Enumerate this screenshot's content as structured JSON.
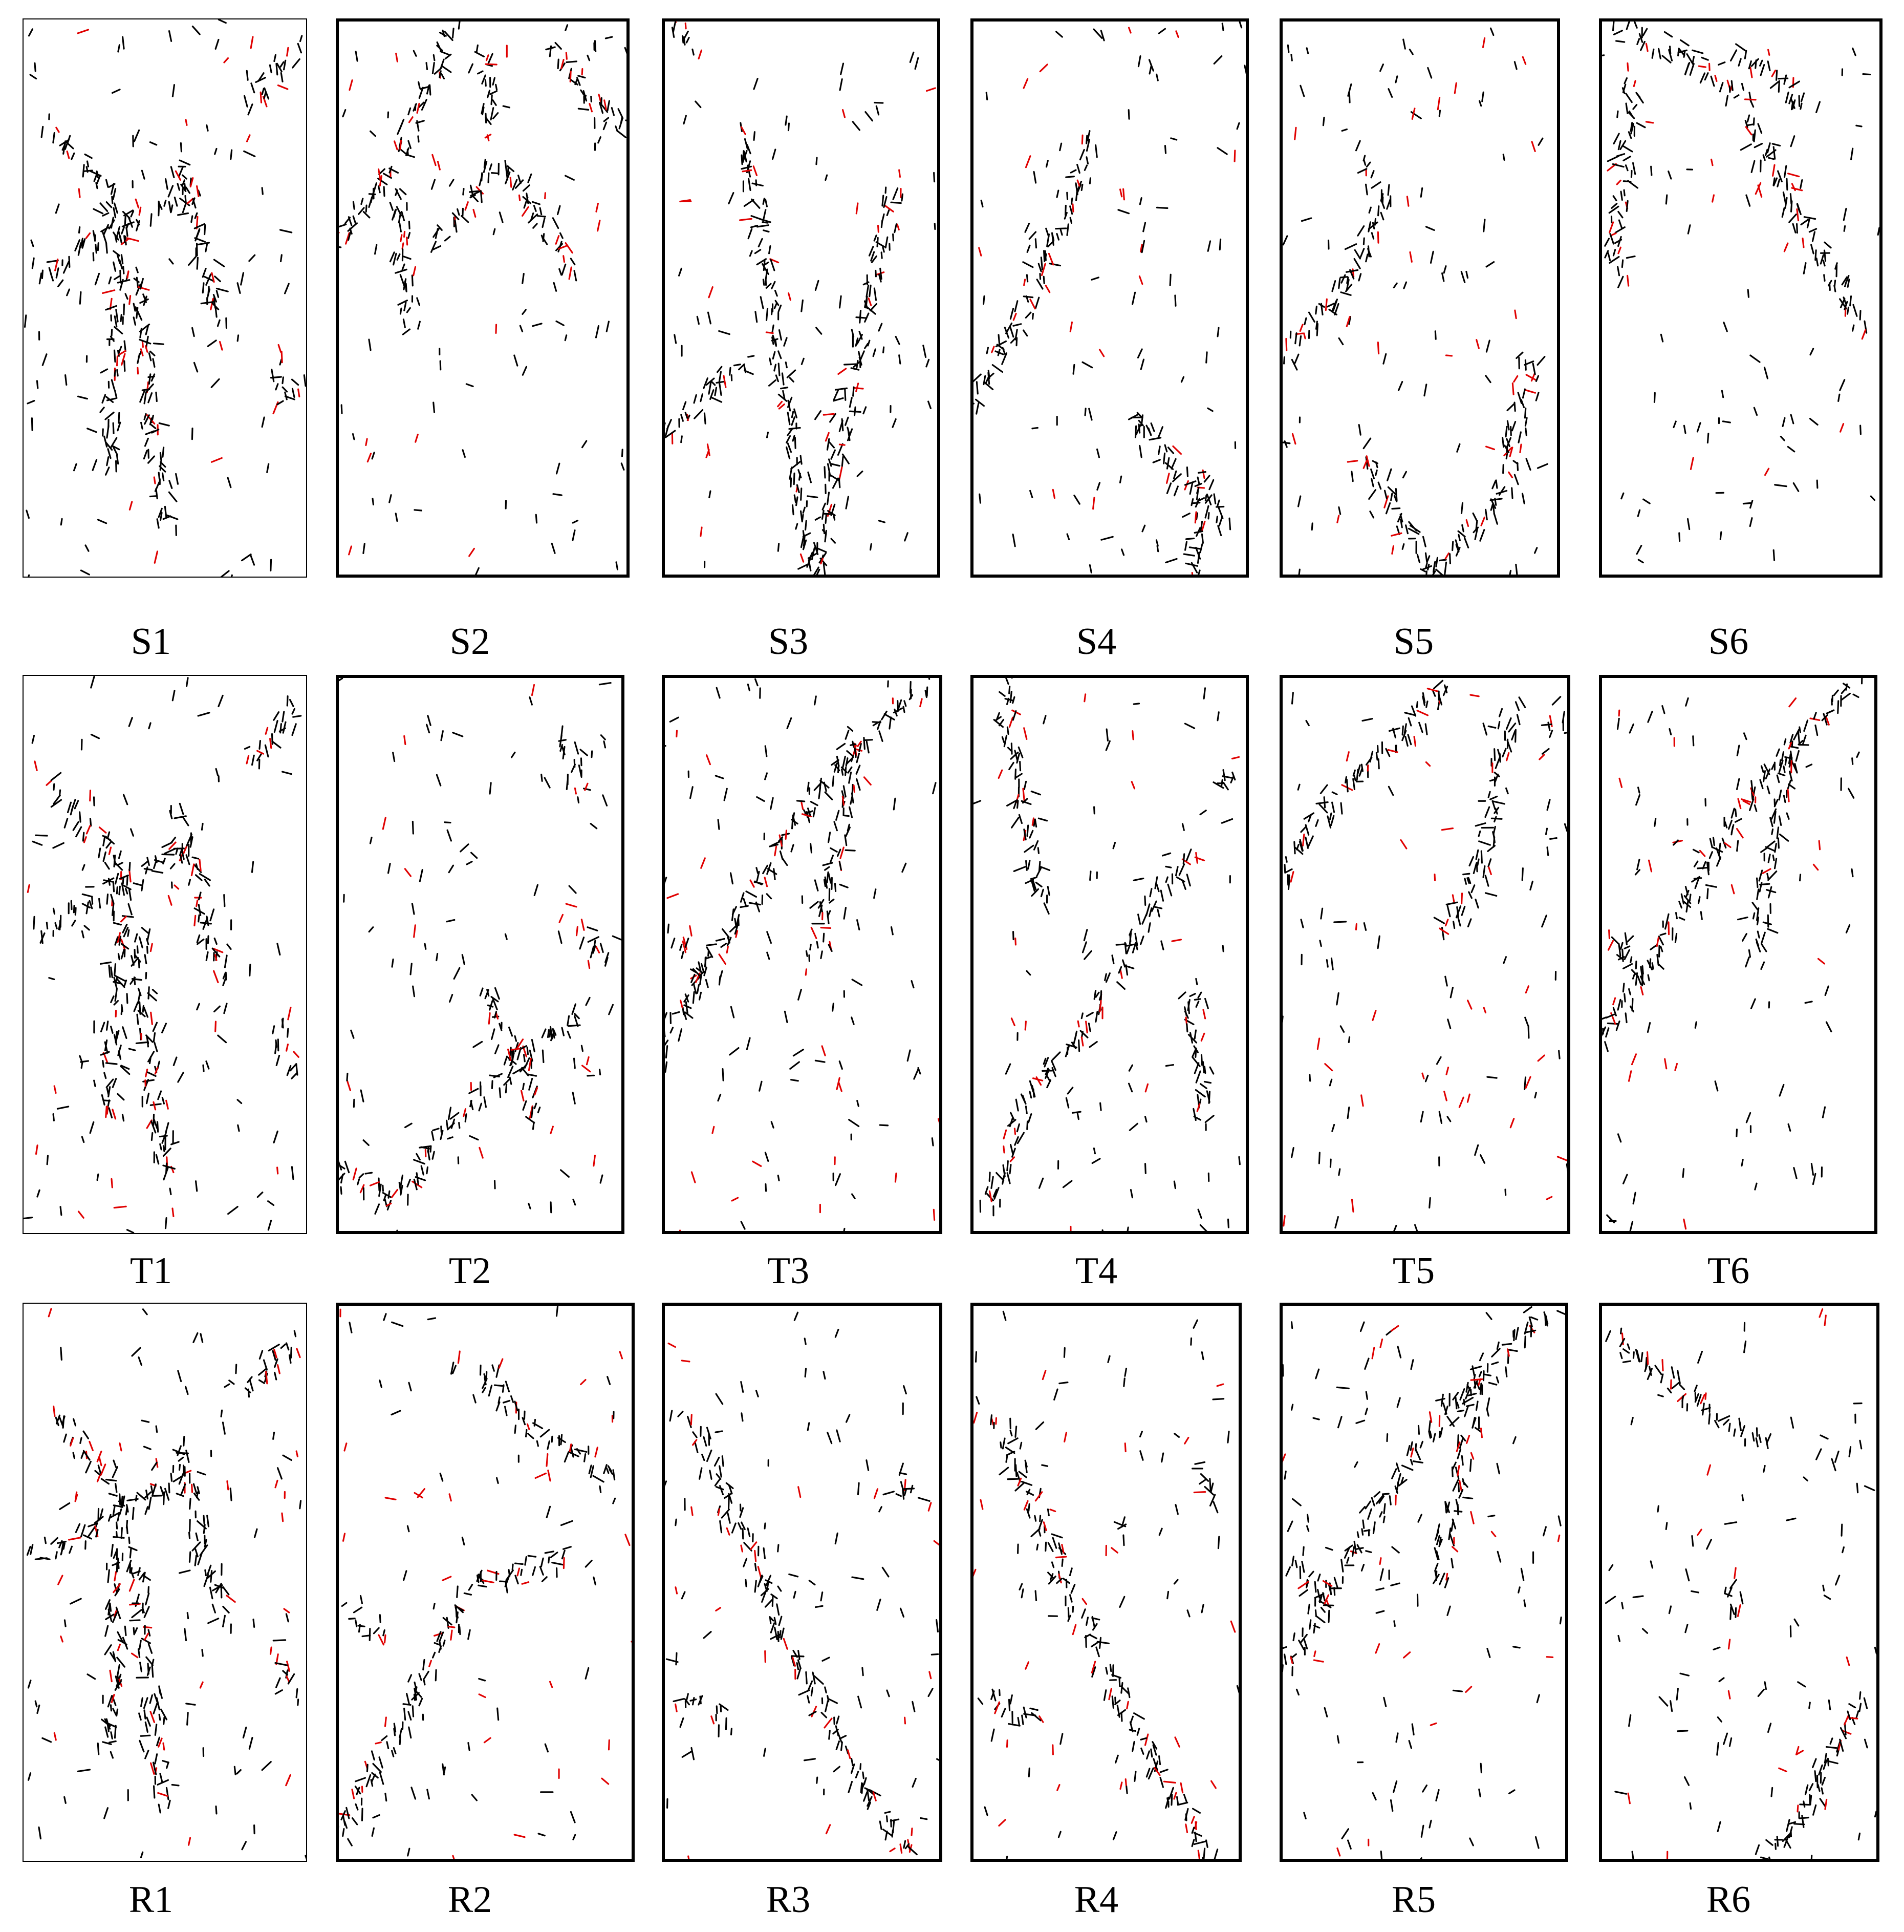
{
  "colors": {
    "trace": "#000000",
    "highlight": "#e00000",
    "border": "#000000",
    "background": "#ffffff"
  },
  "rows": [
    {
      "panels": [
        {
          "label": "S1",
          "pattern": "star"
        },
        {
          "label": "S2",
          "pattern": "branch-top"
        },
        {
          "label": "S3",
          "pattern": "vee"
        },
        {
          "label": "S4",
          "pattern": "diag-left"
        },
        {
          "label": "S5",
          "pattern": "valley"
        },
        {
          "label": "S6",
          "pattern": "diag-right"
        }
      ]
    },
    {
      "panels": [
        {
          "label": "T1",
          "pattern": "star"
        },
        {
          "label": "T2",
          "pattern": "loop-bottom"
        },
        {
          "label": "T3",
          "pattern": "diag-up"
        },
        {
          "label": "T4",
          "pattern": "zigzag"
        },
        {
          "label": "T5",
          "pattern": "arc-top"
        },
        {
          "label": "T6",
          "pattern": "diag-up"
        }
      ]
    },
    {
      "panels": [
        {
          "label": "R1",
          "pattern": "star"
        },
        {
          "label": "R2",
          "pattern": "scatter-right"
        },
        {
          "label": "R3",
          "pattern": "diag-down"
        },
        {
          "label": "R4",
          "pattern": "diag-down"
        },
        {
          "label": "R5",
          "pattern": "diag-up"
        },
        {
          "label": "R6",
          "pattern": "corners"
        }
      ]
    }
  ]
}
